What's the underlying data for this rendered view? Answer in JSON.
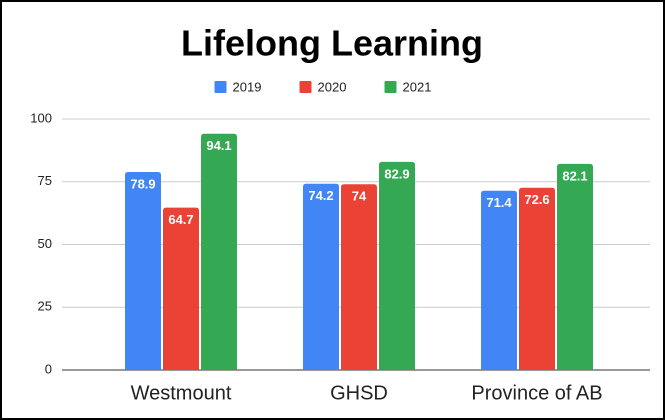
{
  "chart_data": {
    "type": "bar",
    "title": "Lifelong Learning",
    "categories": [
      "Westmount",
      "GHSD",
      "Province of AB"
    ],
    "series": [
      {
        "name": "2019",
        "color": "#4285f4",
        "values": [
          78.9,
          74.2,
          71.4
        ]
      },
      {
        "name": "2020",
        "color": "#ea4335",
        "values": [
          64.7,
          74,
          72.6
        ]
      },
      {
        "name": "2021",
        "color": "#34a853",
        "values": [
          94.1,
          82.9,
          82.1
        ]
      }
    ],
    "ylim": [
      0,
      100
    ],
    "yticks": [
      0,
      25,
      50,
      75,
      100
    ],
    "grid": true,
    "legend": "top"
  }
}
